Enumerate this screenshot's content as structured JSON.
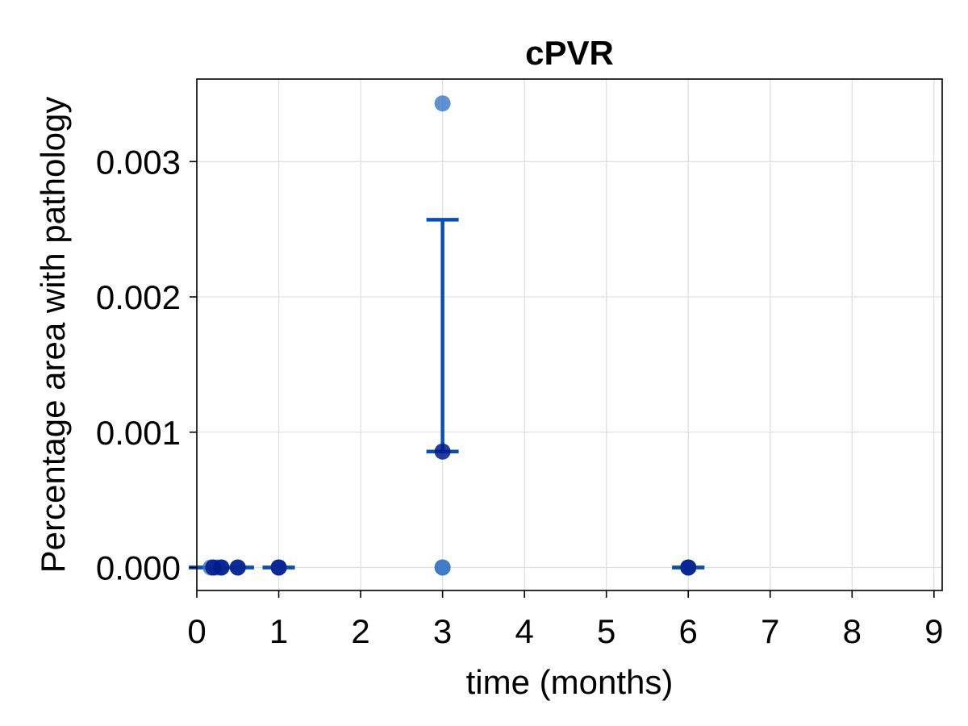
{
  "chart_data": {
    "type": "scatter",
    "title": "cPVR",
    "xlabel": "time (months)",
    "ylabel": "Percentage area with pathology",
    "xlim": [
      0,
      9.1
    ],
    "ylim": [
      -0.00017,
      0.00361
    ],
    "xticks": [
      0,
      1,
      2,
      3,
      4,
      5,
      6,
      7,
      8,
      9
    ],
    "xtick_labels": [
      "0",
      "1",
      "2",
      "3",
      "4",
      "5",
      "6",
      "7",
      "8",
      "9"
    ],
    "yticks": [
      0,
      0.001,
      0.002,
      0.003
    ],
    "ytick_labels": [
      "0.000",
      "0.001",
      "0.002",
      "0.003"
    ],
    "grid": true,
    "legend": "none",
    "colors": {
      "points": "#3a75c4",
      "mean_points": "#001a8c",
      "error_bars": "#0a4fb0",
      "grid": "#e0e0e0"
    },
    "points": [
      {
        "x": 0.17,
        "y": 0
      },
      {
        "x": 0.2,
        "y": 0
      },
      {
        "x": 0.25,
        "y": 0
      },
      {
        "x": 0.3,
        "y": 0
      },
      {
        "x": 0.5,
        "y": 0
      },
      {
        "x": 1,
        "y": 0
      },
      {
        "x": 1,
        "y": 0
      },
      {
        "x": 3,
        "y": 0
      },
      {
        "x": 3,
        "y": 0
      },
      {
        "x": 3,
        "y": 0.00343
      },
      {
        "x": 6,
        "y": 0
      },
      {
        "x": 6,
        "y": 0
      }
    ],
    "means": [
      {
        "x": 0.2,
        "y": 0
      },
      {
        "x": 0.3,
        "y": 0
      },
      {
        "x": 0.5,
        "y": 0
      },
      {
        "x": 1,
        "y": 0
      },
      {
        "x": 3,
        "y": 0.000857
      },
      {
        "x": 6,
        "y": 0
      }
    ],
    "error_bars": [
      {
        "x": 0.1,
        "y": 0,
        "lower": 0,
        "upper": 0
      },
      {
        "x": 0.5,
        "y": 0,
        "lower": 0,
        "upper": 0
      },
      {
        "x": 1,
        "y": 0,
        "lower": 0,
        "upper": 0
      },
      {
        "x": 3,
        "y": 0.000857,
        "lower": 0.000857,
        "upper": 0.00257
      },
      {
        "x": 6,
        "y": 0,
        "lower": 0,
        "upper": 0
      }
    ]
  }
}
